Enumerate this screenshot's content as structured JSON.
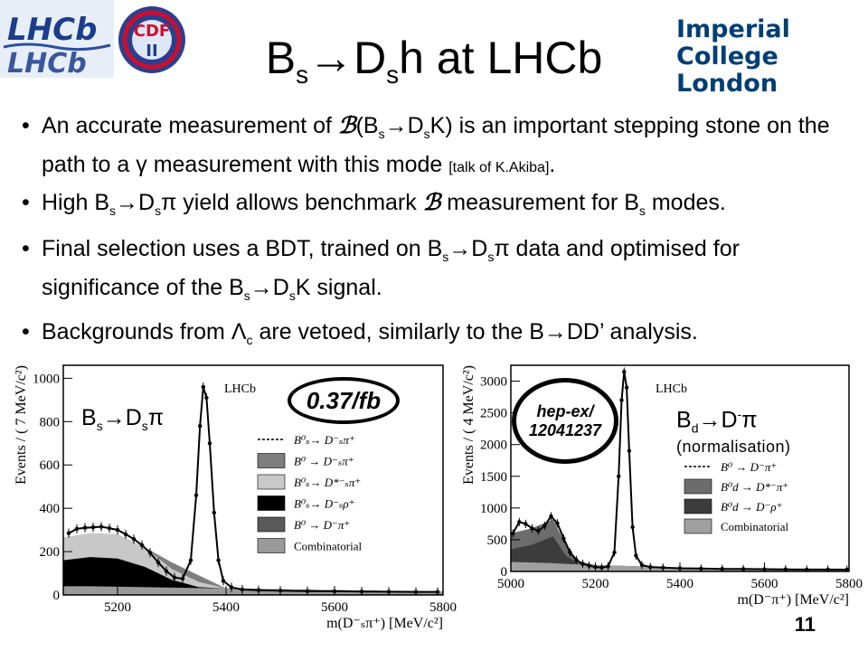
{
  "slide": {
    "title": {
      "main": "B",
      "sub1": "s",
      "mid": "→D",
      "sub2": "s",
      "end": "h at LHCb"
    },
    "page_number": "11",
    "accent_colors": {
      "imperial_blue": "#003e74",
      "lhcb_blue": "#1c3d8c",
      "cdf_red": "#c8102e"
    }
  },
  "logos": {
    "lhcb": {
      "text": "LHCb",
      "icon": "lhcb-logo"
    },
    "cdf": {
      "text": "CDF",
      "roman": "II",
      "icon": "cdf-logo"
    },
    "imperial": {
      "line1": "Imperial College",
      "line2": "London",
      "icon": "imperial-logo"
    }
  },
  "bullets": [
    {
      "id": "b1",
      "parts": [
        "An accurate measurement of ",
        "(B",
        "s",
        "→D",
        "s",
        "K) is an important stepping stone on the path to a γ measurement with this mode ",
        "[talk of K.Akiba]",
        "."
      ]
    },
    {
      "id": "b2",
      "parts": [
        "High B",
        "s",
        "→D",
        "s",
        "π yield allows benchmark ",
        " measurement for B",
        "s",
        " modes."
      ]
    },
    {
      "id": "b3",
      "parts": [
        "Final selection uses a BDT, trained on B",
        "s",
        "→D",
        "s",
        "π data and optimised for significance of the B",
        "s",
        "→D",
        "s",
        "K signal."
      ]
    },
    {
      "id": "b4",
      "parts": [
        "Backgrounds from Λ",
        "c",
        " are vetoed, similarly to the B→DD’ analysis."
      ]
    }
  ],
  "callouts": {
    "lumi": "0.37/fb",
    "ref_line1": "hep-ex/",
    "ref_line2": "12041237"
  },
  "plot_labels": {
    "left": {
      "main": "B",
      "sub1": "s",
      "mid": "→D",
      "sub2": "s",
      "end": "π"
    },
    "right": {
      "main": "B",
      "sub1": "d",
      "mid": "→D",
      "sup": "-",
      "end": "π",
      "note": "(normalisation)"
    }
  },
  "chart_data": [
    {
      "type": "histogram",
      "watermark": "LHCb",
      "ylabel": "Events / ( 7 MeV/c²)",
      "xlabel": "m(D⁻ₛπ⁺) [MeV/c²]",
      "xlim": [
        5100,
        5800
      ],
      "ylim": [
        0,
        1060
      ],
      "xticks": [
        "5200",
        "5400",
        "5600",
        "5800"
      ],
      "yticks": [
        "0",
        "200",
        "400",
        "600",
        "800",
        "1000"
      ],
      "legend": [
        "B⁰ₛ→ D⁻ₛπ⁺",
        "B⁰ → D⁻ₛπ⁺",
        "B⁰ₛ→ D*⁻ₛπ⁺",
        "B⁰ₛ→ D⁻ₛρ⁺",
        "B⁰ → D⁻π⁺",
        "Combinatorial"
      ],
      "legend_position": "right",
      "colors": {
        "comb": "#9a9a9a",
        "dsrho": "#000000",
        "dstar": "#c8c8c8",
        "dpi": "#5a5a5a",
        "b0dspi": "#7e7e7e"
      },
      "points": {
        "x": [
          5110,
          5125,
          5140,
          5155,
          5170,
          5185,
          5200,
          5215,
          5230,
          5245,
          5260,
          5275,
          5290,
          5305,
          5320,
          5335,
          5345,
          5352,
          5358,
          5364,
          5370,
          5378,
          5386,
          5395,
          5410,
          5430,
          5460,
          5500,
          5550,
          5600,
          5650,
          5700,
          5750,
          5790
        ],
        "y": [
          285,
          305,
          310,
          312,
          315,
          308,
          300,
          280,
          258,
          230,
          195,
          150,
          110,
          80,
          75,
          160,
          460,
          780,
          960,
          910,
          700,
          380,
          160,
          65,
          35,
          25,
          22,
          20,
          18,
          17,
          16,
          15,
          14,
          14
        ]
      },
      "components_cumulative": {
        "x": [
          5100,
          5150,
          5200,
          5250,
          5300,
          5350,
          5400,
          5500,
          5600,
          5700,
          5800
        ],
        "comb": [
          40,
          40,
          38,
          36,
          34,
          32,
          30,
          26,
          22,
          18,
          15
        ],
        "dsrho": [
          160,
          175,
          168,
          130,
          70,
          36,
          30,
          26,
          22,
          18,
          15
        ],
        "dstar": [
          265,
          285,
          280,
          220,
          120,
          60,
          30,
          26,
          22,
          18,
          15
        ],
        "b0dspi": [
          265,
          285,
          280,
          220,
          150,
          90,
          30,
          26,
          22,
          18,
          15
        ]
      }
    },
    {
      "type": "histogram",
      "watermark": "LHCb",
      "ylabel": "Events / ( 4 MeV/c²)",
      "xlabel": "m(D⁻π⁺) [MeV/c²]",
      "xlim": [
        5000,
        5800
      ],
      "ylim": [
        0,
        3250
      ],
      "xticks": [
        "5000",
        "5200",
        "5400",
        "5600",
        "5800"
      ],
      "yticks": [
        "0",
        "500",
        "1000",
        "1500",
        "2000",
        "2500",
        "3000"
      ],
      "legend": [
        "B⁰ → D⁻π⁺",
        "B⁰d → D*⁻π⁺",
        "B⁰d → D⁻ρ⁺",
        "Combinatorial"
      ],
      "legend_position": "right",
      "colors": {
        "dstar": "#6c6c6c",
        "drho": "#3c3c3c",
        "comb": "#a0a0a0"
      },
      "points": {
        "x": [
          5005,
          5020,
          5035,
          5050,
          5065,
          5080,
          5095,
          5110,
          5125,
          5140,
          5155,
          5170,
          5185,
          5200,
          5215,
          5230,
          5245,
          5255,
          5262,
          5268,
          5274,
          5280,
          5288,
          5296,
          5310,
          5330,
          5360,
          5400,
          5450,
          5500,
          5550,
          5600,
          5650,
          5700,
          5750,
          5795
        ],
        "y": [
          600,
          780,
          750,
          680,
          640,
          720,
          870,
          760,
          520,
          300,
          180,
          120,
          90,
          70,
          60,
          80,
          300,
          1500,
          2700,
          3150,
          2900,
          1900,
          700,
          250,
          100,
          70,
          60,
          50,
          45,
          40,
          38,
          35,
          33,
          30,
          30,
          28
        ]
      },
      "components_cumulative": {
        "x": [
          5000,
          5050,
          5100,
          5130,
          5160,
          5200,
          5250,
          5300,
          5400,
          5600,
          5800
        ],
        "comb": [
          150,
          140,
          130,
          120,
          110,
          100,
          90,
          80,
          60,
          40,
          30
        ],
        "drho": [
          350,
          420,
          550,
          250,
          120,
          100,
          90,
          80,
          60,
          40,
          30
        ],
        "dstar": [
          600,
          680,
          820,
          420,
          160,
          100,
          90,
          80,
          60,
          40,
          30
        ]
      }
    }
  ]
}
